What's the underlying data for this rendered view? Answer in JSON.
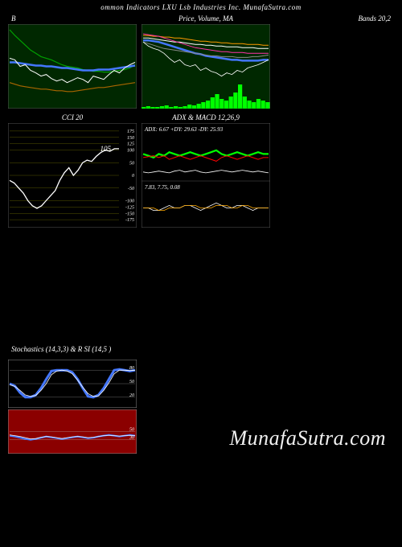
{
  "header": "ommon Indicators LXU Lsb Industries Inc. MunafaSutra.com",
  "watermark": "MunafaSutra.com",
  "panels": {
    "bb": {
      "title_left": "B",
      "title_right": "Bands 20,2",
      "bg": "#002800",
      "border": "#555555",
      "lines": {
        "upper": {
          "color": "#00a000",
          "width": 1.2,
          "pts": [
            95,
            88,
            82,
            76,
            70,
            66,
            62,
            60,
            58,
            55,
            52,
            50,
            49,
            48,
            46,
            45,
            44,
            44,
            43,
            43,
            44,
            45,
            46,
            48,
            52
          ]
        },
        "mid": {
          "color": "#4477ff",
          "width": 2.5,
          "pts": [
            55,
            55,
            54,
            53,
            52,
            51,
            51,
            50,
            50,
            49,
            48,
            48,
            47,
            46,
            45,
            45,
            45,
            46,
            46,
            46,
            47,
            48,
            49,
            50,
            51
          ]
        },
        "lower": {
          "color": "#aa6600",
          "width": 1.2,
          "pts": [
            30,
            28,
            26,
            25,
            24,
            23,
            22,
            22,
            21,
            20,
            20,
            19,
            19,
            20,
            21,
            22,
            23,
            24,
            24,
            25,
            26,
            27,
            28,
            29,
            30
          ]
        },
        "price": {
          "color": "#ffffff",
          "width": 1,
          "pts": [
            60,
            58,
            50,
            52,
            45,
            42,
            38,
            40,
            35,
            32,
            34,
            30,
            33,
            36,
            34,
            30,
            38,
            36,
            34,
            40,
            45,
            42,
            48,
            52,
            55
          ]
        }
      }
    },
    "ma": {
      "title": "Price, Volume, MA",
      "bg": "#002800",
      "border": "#555555",
      "lines": {
        "ma1": {
          "color": "#ff9900",
          "width": 1,
          "pts": [
            88,
            88,
            87,
            87,
            86,
            86,
            85,
            85,
            84,
            83,
            82,
            81,
            81,
            80,
            80,
            79,
            79,
            78,
            78,
            78,
            77,
            77,
            77,
            76,
            76
          ]
        },
        "ma2": {
          "color": "#ffffff",
          "width": 1,
          "pts": [
            85,
            85,
            84,
            83,
            82,
            81,
            80,
            80,
            79,
            78,
            77,
            77,
            76,
            76,
            75,
            75,
            74,
            74,
            74,
            73,
            73,
            73,
            72,
            72,
            72
          ]
        },
        "ma3": {
          "color": "#ff33aa",
          "width": 1,
          "pts": [
            90,
            89,
            88,
            87,
            85,
            83,
            81,
            79,
            77,
            75,
            73,
            72,
            71,
            70,
            69,
            68,
            68,
            67,
            67,
            67,
            66,
            66,
            66,
            66,
            66
          ]
        },
        "ma4": {
          "color": "#4477ff",
          "width": 2.5,
          "pts": [
            82,
            82,
            81,
            80,
            78,
            76,
            74,
            72,
            70,
            68,
            66,
            65,
            63,
            62,
            61,
            60,
            59,
            58,
            58,
            57,
            57,
            57,
            57,
            58,
            58
          ]
        },
        "ma5": {
          "color": "#888888",
          "width": 1,
          "pts": [
            80,
            78,
            76,
            74,
            72,
            71,
            70,
            69,
            68,
            67,
            66,
            65,
            64,
            63,
            63,
            62,
            62,
            62,
            61,
            61,
            61,
            62,
            62,
            63,
            64
          ]
        },
        "price": {
          "color": "#ffffff",
          "width": 0.8,
          "pts": [
            80,
            75,
            72,
            70,
            66,
            60,
            55,
            58,
            52,
            50,
            52,
            45,
            48,
            44,
            42,
            38,
            42,
            40,
            45,
            43,
            48,
            50,
            52,
            55,
            58
          ]
        }
      },
      "volume": {
        "color": "#00ff00",
        "heights": [
          2,
          3,
          2,
          2,
          3,
          4,
          2,
          3,
          2,
          3,
          5,
          4,
          6,
          8,
          10,
          14,
          18,
          12,
          10,
          15,
          20,
          30,
          15,
          10,
          8,
          12,
          10,
          8
        ]
      }
    },
    "cci": {
      "title": "CCI 20",
      "bg": "#000000",
      "border": "#555555",
      "grid_color": "#555500",
      "ticks": [
        175,
        150,
        125,
        100,
        50,
        0,
        -50,
        -100,
        -125,
        -150,
        -175
      ],
      "label_value": "105",
      "line": {
        "color": "#ffffff",
        "width": 1.3,
        "pts": [
          -20,
          -30,
          -50,
          -70,
          -100,
          -120,
          -130,
          -120,
          -100,
          -80,
          -60,
          -20,
          10,
          30,
          0,
          20,
          50,
          60,
          55,
          75,
          90,
          100,
          95,
          105,
          105
        ]
      }
    },
    "adx": {
      "title": "ADX  & MACD 12,26,9",
      "bg": "#000000",
      "border": "#555555",
      "text1": "ADX: 6.67 +DY: 29.63 -DY: 25.93",
      "text2": "7.83, 7.75, 0.08",
      "adx_line": {
        "color": "#ffffff",
        "width": 0.8,
        "pts": [
          10,
          9,
          10,
          11,
          10,
          9,
          11,
          12,
          10,
          11,
          12,
          10,
          9,
          10,
          11,
          12,
          11,
          10,
          11,
          12,
          11,
          10,
          11,
          10,
          9
        ]
      },
      "plus_dy": {
        "color": "#00ff00",
        "width": 2.2,
        "pts": [
          30,
          28,
          26,
          30,
          28,
          32,
          30,
          28,
          30,
          32,
          30,
          28,
          30,
          32,
          34,
          30,
          28,
          30,
          32,
          30,
          28,
          30,
          32,
          30,
          30
        ]
      },
      "minus_dy": {
        "color": "#ff0000",
        "width": 1,
        "pts": [
          26,
          27,
          28,
          26,
          28,
          24,
          26,
          28,
          26,
          24,
          26,
          28,
          26,
          24,
          22,
          26,
          28,
          26,
          24,
          26,
          28,
          26,
          24,
          26,
          26
        ]
      },
      "macd": {
        "color": "#ffffff",
        "width": 0.8,
        "pts": [
          0,
          0,
          -1,
          -1,
          0,
          1,
          0,
          0,
          1,
          1,
          0,
          -1,
          0,
          1,
          2,
          1,
          0,
          0,
          1,
          1,
          0,
          -1,
          0,
          0,
          0
        ]
      },
      "signal": {
        "color": "#ffaa00",
        "width": 0.8,
        "pts": [
          0,
          0,
          0,
          -1,
          -1,
          0,
          0,
          0,
          1,
          1,
          1,
          0,
          0,
          0,
          1,
          1,
          1,
          0,
          0,
          1,
          1,
          0,
          0,
          0,
          0
        ]
      }
    },
    "stoch": {
      "title": "Stochastics                    (14,3,3) & R                   SI                    (14,5                          )",
      "bg": "#000000",
      "border": "#888888",
      "grid": [
        80,
        50,
        20
      ],
      "labels": [
        "80",
        "50",
        "20"
      ],
      "k": {
        "color": "#4477ff",
        "width": 3,
        "pts": [
          50,
          45,
          30,
          20,
          20,
          25,
          40,
          60,
          78,
          80,
          80,
          80,
          75,
          60,
          40,
          22,
          20,
          25,
          40,
          60,
          80,
          82,
          80,
          78,
          80
        ]
      },
      "d": {
        "color": "#ffffff",
        "width": 0.8,
        "pts": [
          48,
          44,
          35,
          25,
          22,
          24,
          35,
          50,
          70,
          78,
          80,
          78,
          72,
          58,
          42,
          28,
          22,
          23,
          35,
          52,
          72,
          80,
          80,
          79,
          80
        ]
      }
    },
    "rsi": {
      "bg": "#8b0000",
      "border": "#888888",
      "grid": [
        50,
        30
      ],
      "labels": [
        "50",
        "30"
      ],
      "line1": {
        "color": "#4477ff",
        "width": 2,
        "pts": [
          40,
          38,
          35,
          32,
          30,
          32,
          35,
          38,
          36,
          34,
          32,
          34,
          36,
          38,
          36,
          34,
          35,
          38,
          40,
          42,
          40,
          38,
          40,
          42,
          40
        ]
      },
      "line2": {
        "color": "#ffffff",
        "width": 0.8,
        "pts": [
          42,
          40,
          38,
          35,
          32,
          33,
          36,
          38,
          37,
          35,
          33,
          35,
          37,
          38,
          37,
          35,
          36,
          38,
          40,
          41,
          40,
          39,
          40,
          41,
          40
        ]
      }
    }
  }
}
